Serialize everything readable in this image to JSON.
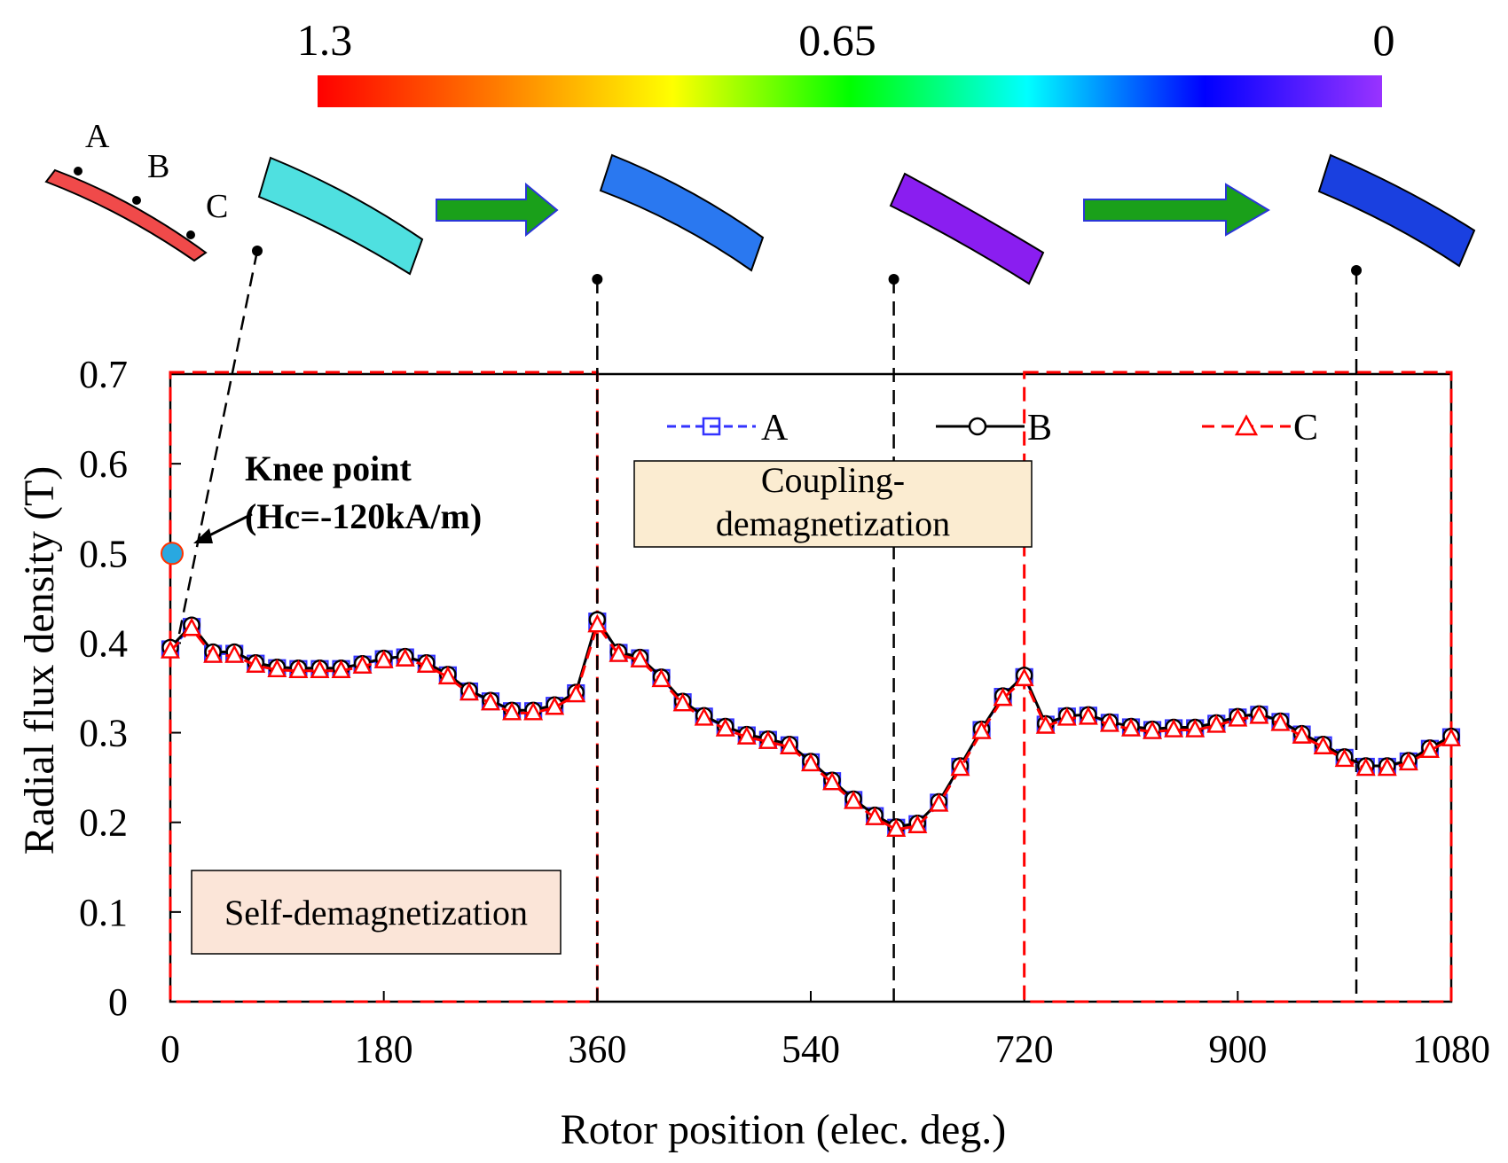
{
  "colorbar": {
    "max_label": "1.3",
    "mid_label": "0.65",
    "min_label": "0",
    "stops": [
      "#ff0000",
      "#ff7a00",
      "#ffff00",
      "#00ff00",
      "#00ffff",
      "#0000ff",
      "#9933ff"
    ]
  },
  "points_legend": {
    "a": "A",
    "b": "B",
    "c": "C"
  },
  "magnets": [
    {
      "name": "magnet-initial",
      "fill": "#f04a4a"
    },
    {
      "name": "magnet-state-0deg",
      "fill": "#4fe0e0"
    },
    {
      "name": "magnet-state-360deg",
      "fill": "#2a78f0"
    },
    {
      "name": "magnet-state-630deg",
      "fill": "#8a1ef0"
    },
    {
      "name": "magnet-state-1020deg",
      "fill": "#1a40e0"
    }
  ],
  "annotations": {
    "knee_title": "Knee point",
    "knee_value": "(Hc=-120kA/m)",
    "coupling_line1": "Coupling-",
    "coupling_line2": "demagnetization",
    "self_demag": "Self-demagnetization",
    "knee_point_value": 0.5
  },
  "colors": {
    "series_a": "#3333ff",
    "series_b": "#000000",
    "series_c": "#ff0000",
    "arrow": "#1aa01a",
    "annotation_box": "#fbecd1",
    "self_box": "#fbe5d8",
    "knee_marker": "#29a8e0",
    "region_border": "#ff0000"
  },
  "chart_data": {
    "type": "line",
    "xlabel": "Rotor position (elec. deg.)",
    "ylabel": "Radial flux density (T)",
    "xlim": [
      0,
      1080
    ],
    "ylim": [
      0,
      0.7
    ],
    "xticks": [
      0,
      180,
      360,
      540,
      720,
      900,
      1080
    ],
    "yticks": [
      0,
      0.1,
      0.2,
      0.3,
      0.4,
      0.5,
      0.6,
      0.7
    ],
    "ytick_labels": [
      "0",
      "0.1",
      "0.2",
      "0.3",
      "0.4",
      "0.5",
      "0.6",
      "0.7"
    ],
    "regions": [
      {
        "label": "Self-demagnetization",
        "x_range": [
          0,
          360
        ]
      },
      {
        "label": "Coupling-demagnetization",
        "x_range": [
          720,
          1080
        ]
      }
    ],
    "state_markers_x": [
      0,
      360,
      610,
      1000
    ],
    "x": [
      0,
      18,
      36,
      54,
      72,
      90,
      108,
      126,
      144,
      162,
      180,
      198,
      216,
      234,
      252,
      270,
      288,
      306,
      324,
      342,
      360,
      378,
      396,
      414,
      432,
      450,
      468,
      486,
      504,
      522,
      540,
      558,
      576,
      594,
      612,
      630,
      648,
      666,
      684,
      702,
      720,
      738,
      756,
      774,
      792,
      810,
      828,
      846,
      864,
      882,
      900,
      918,
      936,
      954,
      972,
      990,
      1008,
      1026,
      1044,
      1062,
      1080
    ],
    "series": [
      {
        "name": "A",
        "marker": "square",
        "dash": "dashed",
        "values": [
          0.393,
          0.418,
          0.388,
          0.388,
          0.377,
          0.372,
          0.371,
          0.371,
          0.371,
          0.376,
          0.382,
          0.384,
          0.377,
          0.364,
          0.346,
          0.335,
          0.324,
          0.324,
          0.33,
          0.344,
          0.424,
          0.389,
          0.383,
          0.361,
          0.334,
          0.318,
          0.306,
          0.297,
          0.292,
          0.286,
          0.267,
          0.246,
          0.225,
          0.207,
          0.194,
          0.198,
          0.222,
          0.262,
          0.303,
          0.34,
          0.362,
          0.309,
          0.318,
          0.319,
          0.311,
          0.306,
          0.303,
          0.305,
          0.305,
          0.31,
          0.317,
          0.32,
          0.312,
          0.298,
          0.286,
          0.272,
          0.262,
          0.262,
          0.268,
          0.282,
          0.295
        ]
      },
      {
        "name": "B",
        "marker": "circle",
        "dash": "solid",
        "values": [
          0.395,
          0.42,
          0.39,
          0.39,
          0.378,
          0.373,
          0.372,
          0.372,
          0.372,
          0.377,
          0.383,
          0.385,
          0.378,
          0.365,
          0.347,
          0.336,
          0.325,
          0.325,
          0.331,
          0.345,
          0.426,
          0.39,
          0.384,
          0.362,
          0.335,
          0.319,
          0.307,
          0.298,
          0.293,
          0.287,
          0.268,
          0.247,
          0.226,
          0.208,
          0.195,
          0.199,
          0.223,
          0.263,
          0.304,
          0.341,
          0.364,
          0.31,
          0.319,
          0.32,
          0.312,
          0.307,
          0.304,
          0.306,
          0.306,
          0.311,
          0.318,
          0.321,
          0.313,
          0.299,
          0.287,
          0.273,
          0.263,
          0.263,
          0.269,
          0.283,
          0.296
        ]
      },
      {
        "name": "C",
        "marker": "triangle",
        "dash": "dashed",
        "values": [
          0.391,
          0.416,
          0.386,
          0.386,
          0.375,
          0.37,
          0.369,
          0.369,
          0.369,
          0.374,
          0.38,
          0.382,
          0.375,
          0.362,
          0.344,
          0.333,
          0.322,
          0.322,
          0.328,
          0.342,
          0.42,
          0.387,
          0.381,
          0.359,
          0.332,
          0.316,
          0.304,
          0.295,
          0.29,
          0.284,
          0.265,
          0.244,
          0.223,
          0.205,
          0.192,
          0.196,
          0.22,
          0.26,
          0.301,
          0.338,
          0.36,
          0.307,
          0.316,
          0.317,
          0.309,
          0.304,
          0.301,
          0.303,
          0.303,
          0.308,
          0.315,
          0.318,
          0.31,
          0.296,
          0.284,
          0.27,
          0.26,
          0.26,
          0.266,
          0.28,
          0.293
        ]
      }
    ]
  }
}
